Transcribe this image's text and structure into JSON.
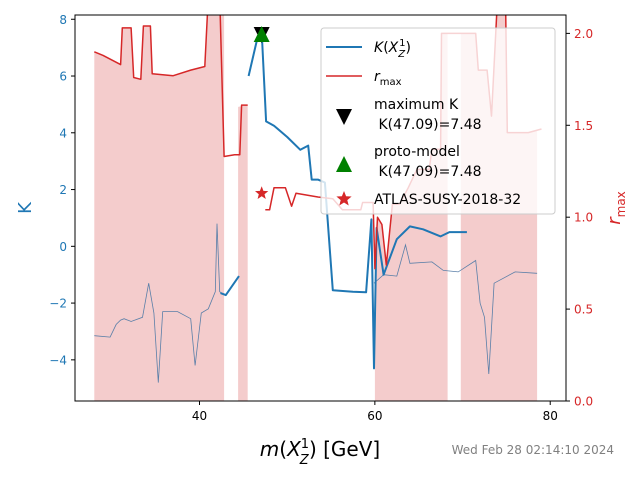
{
  "chart_data": {
    "type": "line",
    "xlabel": "m(X_Z^1) [GeV]",
    "ylabel_left": "K",
    "ylabel_right": "r_max",
    "xlim": [
      25.8,
      81.8
    ],
    "ylim_left": [
      -5.45,
      8.15
    ],
    "ylim_right": [
      0.0,
      2.1
    ],
    "x_ticks": [
      40,
      60,
      80
    ],
    "y_left_ticks": [
      -4,
      -2,
      0,
      2,
      4,
      6,
      8
    ],
    "y_right_ticks": [
      0.0,
      0.5,
      1.0,
      1.5,
      2.0
    ],
    "colors": {
      "K": "#1f77b4",
      "rmax": "#d62728",
      "fill": "#f4cccc",
      "thin": "#5a7fa8",
      "maximum": "#000000",
      "proto": "#008000",
      "atlas": "#d62728",
      "left_axis": "#1f77b4",
      "right_axis": "#d62728"
    },
    "K_segments": [
      [
        [
          42.4,
          -1.65
        ],
        [
          43.0,
          -1.72
        ],
        [
          44.5,
          -1.05
        ]
      ],
      [
        [
          45.6,
          6.0
        ],
        [
          46.5,
          7.2
        ],
        [
          47.1,
          7.48
        ],
        [
          47.6,
          4.4
        ],
        [
          48.5,
          4.25
        ],
        [
          50.0,
          3.85
        ],
        [
          51.5,
          3.4
        ],
        [
          52.4,
          3.55
        ],
        [
          52.8,
          2.35
        ],
        [
          53.5,
          2.35
        ],
        [
          54.3,
          2.25
        ],
        [
          55.2,
          -1.55
        ],
        [
          57.5,
          -1.6
        ],
        [
          59.0,
          -1.62
        ],
        [
          59.6,
          0.95
        ],
        [
          59.9,
          -4.3
        ],
        [
          60.2,
          0.65
        ],
        [
          61.0,
          -1.0
        ],
        [
          62.5,
          0.25
        ],
        [
          64.0,
          0.7
        ],
        [
          65.5,
          0.6
        ],
        [
          67.5,
          0.35
        ],
        [
          68.5,
          0.5
        ],
        [
          70.5,
          0.5
        ]
      ]
    ],
    "K_thin": [
      [
        28.0,
        -3.15
      ],
      [
        29.8,
        -3.2
      ],
      [
        30.5,
        -2.75
      ],
      [
        31.0,
        -2.6
      ],
      [
        31.4,
        -2.55
      ],
      [
        32.2,
        -2.65
      ],
      [
        33.5,
        -2.5
      ],
      [
        34.2,
        -1.3
      ],
      [
        34.8,
        -2.35
      ],
      [
        35.3,
        -4.8
      ],
      [
        35.8,
        -2.3
      ],
      [
        37.5,
        -2.3
      ],
      [
        39.0,
        -2.55
      ],
      [
        39.5,
        -4.2
      ],
      [
        40.2,
        -2.35
      ],
      [
        41.0,
        -2.2
      ],
      [
        41.8,
        -1.6
      ],
      [
        42.0,
        0.8
      ],
      [
        42.3,
        -1.6
      ],
      [
        42.5,
        -1.65
      ]
    ],
    "K_thin_right": [
      [
        59.9,
        -1.3
      ],
      [
        61.0,
        -1.0
      ],
      [
        62.5,
        -1.05
      ],
      [
        63.5,
        0.05
      ],
      [
        64.0,
        -0.6
      ],
      [
        66.5,
        -0.55
      ],
      [
        67.8,
        -0.85
      ],
      [
        69.5,
        -0.9
      ],
      [
        71.5,
        -0.5
      ],
      [
        72.0,
        -2.0
      ],
      [
        72.5,
        -2.5
      ],
      [
        73.0,
        -4.5
      ],
      [
        73.6,
        -1.3
      ],
      [
        76.0,
        -0.9
      ],
      [
        78.5,
        -0.95
      ]
    ],
    "rmax_segments": [
      [
        [
          28.0,
          1.9
        ],
        [
          29.0,
          1.88
        ],
        [
          31.0,
          1.83
        ],
        [
          31.2,
          2.03
        ],
        [
          32.2,
          2.03
        ],
        [
          32.5,
          1.76
        ],
        [
          33.3,
          1.75
        ],
        [
          33.6,
          2.04
        ],
        [
          34.4,
          2.04
        ],
        [
          34.6,
          1.78
        ],
        [
          37.0,
          1.77
        ],
        [
          39.0,
          1.8
        ],
        [
          40.6,
          1.82
        ],
        [
          41.0,
          2.2
        ],
        [
          42.3,
          2.2
        ],
        [
          42.8,
          1.33
        ],
        [
          44.0,
          1.34
        ],
        [
          44.6,
          1.34
        ],
        [
          44.8,
          1.61
        ],
        [
          45.5,
          1.61
        ]
      ],
      [
        [
          47.5,
          1.04
        ],
        [
          48.0,
          1.04
        ],
        [
          48.5,
          1.16
        ],
        [
          49.8,
          1.16
        ],
        [
          50.5,
          1.06
        ],
        [
          51.0,
          1.13
        ],
        [
          53.5,
          1.11
        ],
        [
          55.2,
          1.1
        ],
        [
          56.3,
          1.04
        ],
        [
          58.4,
          1.04
        ],
        [
          58.6,
          1.08
        ],
        [
          59.8,
          1.08
        ],
        [
          60.0,
          0.72
        ],
        [
          60.3,
          1.0
        ],
        [
          60.8,
          0.96
        ],
        [
          61.3,
          0.74
        ],
        [
          62.0,
          1.07
        ],
        [
          62.8,
          1.07
        ],
        [
          63.8,
          1.16
        ],
        [
          64.8,
          1.26
        ],
        [
          66.2,
          1.26
        ],
        [
          66.5,
          1.37
        ],
        [
          67.5,
          1.37
        ],
        [
          67.6,
          2.0
        ],
        [
          69.0,
          2.0
        ],
        [
          71.5,
          2.0
        ],
        [
          71.8,
          1.8
        ],
        [
          72.8,
          1.8
        ],
        [
          73.3,
          1.55
        ],
        [
          74.0,
          2.2
        ],
        [
          74.9,
          2.2
        ],
        [
          75.1,
          1.46
        ],
        [
          77.5,
          1.46
        ],
        [
          79.0,
          1.48
        ]
      ]
    ],
    "rmax_fill": [
      [
        [
          28.0,
          1.9
        ],
        [
          29.0,
          1.88
        ],
        [
          31.0,
          1.83
        ],
        [
          31.2,
          2.03
        ],
        [
          32.2,
          2.03
        ],
        [
          32.5,
          1.76
        ],
        [
          33.3,
          1.75
        ],
        [
          33.6,
          2.04
        ],
        [
          34.4,
          2.04
        ],
        [
          34.6,
          1.78
        ],
        [
          37.0,
          1.77
        ],
        [
          39.0,
          1.8
        ],
        [
          40.6,
          1.82
        ],
        [
          41.0,
          2.2
        ],
        [
          42.3,
          2.2
        ],
        [
          42.8,
          2.2
        ],
        [
          42.8,
          0.0
        ],
        [
          28.0,
          0.0
        ]
      ],
      [
        [
          44.4,
          1.6
        ],
        [
          45.5,
          1.61
        ],
        [
          45.5,
          0.0
        ],
        [
          44.4,
          0.0
        ]
      ],
      [
        [
          60.0,
          0.72
        ],
        [
          60.3,
          1.0
        ],
        [
          60.8,
          0.96
        ],
        [
          61.3,
          0.74
        ],
        [
          62.0,
          1.07
        ],
        [
          62.8,
          1.07
        ],
        [
          63.8,
          1.16
        ],
        [
          64.8,
          1.26
        ],
        [
          66.2,
          1.26
        ],
        [
          66.5,
          1.37
        ],
        [
          67.5,
          1.37
        ],
        [
          67.6,
          2.0
        ],
        [
          68.3,
          2.0
        ],
        [
          68.3,
          0.0
        ],
        [
          60.0,
          0.0
        ]
      ],
      [
        [
          69.8,
          2.0
        ],
        [
          71.5,
          2.0
        ],
        [
          71.8,
          1.8
        ],
        [
          72.8,
          1.8
        ],
        [
          73.3,
          1.55
        ],
        [
          74.0,
          2.2
        ],
        [
          74.9,
          2.2
        ],
        [
          75.1,
          1.46
        ],
        [
          77.5,
          1.46
        ],
        [
          78.5,
          1.47
        ],
        [
          78.5,
          0.0
        ],
        [
          69.8,
          0.0
        ]
      ]
    ],
    "markers": {
      "maximum": {
        "x": 47.09,
        "K": 7.48
      },
      "proto": {
        "x": 47.09,
        "K": 7.48
      },
      "atlas": {
        "x": 47.09,
        "r": 1.13
      }
    },
    "legend": [
      {
        "key": "K",
        "label": "K(X_Z^1)"
      },
      {
        "key": "rmax",
        "label": "r_max"
      },
      {
        "key": "maximum",
        "label1": "maximum K",
        "label2": " K(47.09)=7.48"
      },
      {
        "key": "proto",
        "label1": "proto-model",
        "label2": " K(47.09)=7.48"
      },
      {
        "key": "atlas",
        "label": "ATLAS-SUSY-2018-32"
      }
    ],
    "timestamp": "Wed Feb 28 02:14:10 2024"
  }
}
